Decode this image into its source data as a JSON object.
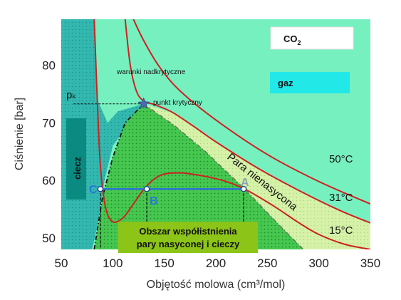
{
  "chart_data": {
    "type": "line",
    "xlabel": "Objętość molowa (cm³/mol)",
    "ylabel": "Ciśnienie [bar]",
    "xlim": [
      50,
      350
    ],
    "ylim": [
      48,
      88
    ],
    "xticks": [
      50,
      100,
      150,
      200,
      250,
      300,
      350
    ],
    "yticks": [
      50,
      60,
      70,
      80
    ],
    "series": [
      {
        "name": "50°C",
        "color": "#cc2222",
        "x": [
          120,
          130,
          145,
          165,
          200,
          250,
          300,
          350
        ],
        "y": [
          88,
          84.3,
          79.8,
          75.6,
          70.5,
          64.5,
          59.8,
          55.9
        ]
      },
      {
        "name": "31°C",
        "color": "#cc2222",
        "x": [
          112,
          117,
          123,
          130,
          140,
          150,
          160,
          180,
          200,
          240,
          280,
          320,
          350
        ],
        "y": [
          88,
          80,
          75.5,
          73.8,
          73.2,
          72.5,
          71.6,
          69.2,
          66.7,
          62.2,
          58.3,
          54.8,
          52.6
        ]
      },
      {
        "name": "15°C",
        "color": "#cc2222",
        "x": [
          82,
          85,
          88,
          93,
          100,
          110,
          120,
          130,
          140,
          150,
          165,
          180,
          200,
          215,
          228,
          240,
          260,
          280,
          300,
          325,
          350
        ],
        "y": [
          88,
          74,
          62.5,
          55.3,
          52.8,
          53.5,
          55.9,
          58.4,
          60.2,
          61.1,
          61.3,
          61.0,
          60.3,
          59.5,
          58.5,
          57.3,
          55.1,
          52.7,
          50.6,
          48.9,
          48
        ]
      }
    ],
    "critical_point": {
      "x": 130,
      "y": 73.3,
      "label": "punkt krytyczny"
    },
    "pk_label": "pₖ",
    "tie_line": {
      "y": 58.5,
      "points": [
        {
          "label": "C",
          "x": 88
        },
        {
          "label": "B",
          "x": 133
        },
        {
          "label": "A",
          "x": 227
        }
      ]
    },
    "region_labels": {
      "supercritical": "warunki nadkrytyczne",
      "gas": "gaz",
      "liquid": "ciecz",
      "vapor": "Para nienasycona",
      "coexistence_line1": "Obszar współistnienia",
      "coexistence_line2": "pary nasyconej i cieczy",
      "compound": "CO",
      "compound_sub": "2"
    },
    "colors": {
      "gas_region": "#77f0c0",
      "liquid_region": "#33b8b0",
      "vapor_region": "#d6f2a8",
      "two_phase_fill": "#46c850",
      "isotherm": "#cc2222",
      "tie_line": "#2e73d6",
      "liquid_box": "#0a8a80",
      "gaz_box": "#22e8e8",
      "coexist_box": "#8cc418"
    },
    "grid": false
  }
}
